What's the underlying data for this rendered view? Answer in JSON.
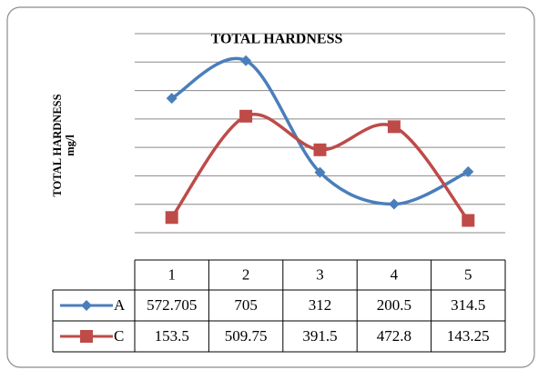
{
  "chart_data": {
    "type": "line",
    "title": "TOTAL HARDNESS",
    "ylabel": "TOTAL HARDNESS",
    "yunit": "mg/l",
    "categories": [
      "1",
      "2",
      "3",
      "4",
      "5"
    ],
    "series": [
      {
        "name": "A",
        "color": "#4a7ebb",
        "marker": "diamond",
        "values": [
          572.705,
          705,
          312,
          200.5,
          314.5
        ]
      },
      {
        "name": "C",
        "color": "#be4b48",
        "marker": "square",
        "values": [
          153.5,
          509.75,
          391.5,
          472.8,
          143.25
        ]
      }
    ],
    "ylim": [
      100,
      800
    ],
    "yticks": [
      100,
      200,
      300,
      400,
      500,
      600,
      700,
      800
    ],
    "grid": true,
    "smooth": true
  }
}
